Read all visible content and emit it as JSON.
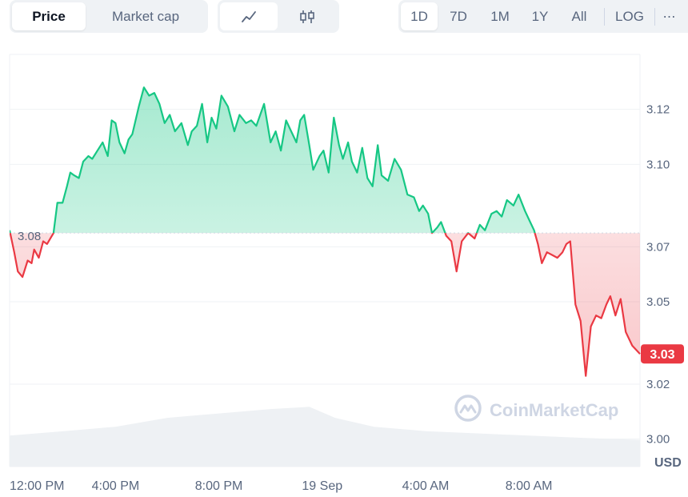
{
  "toolbar": {
    "metric_tabs": [
      {
        "label": "Price",
        "active": true
      },
      {
        "label": "Market cap",
        "active": false
      }
    ],
    "chart_type_icons": [
      "line-chart-icon",
      "candlestick-icon"
    ],
    "ranges": [
      "1D",
      "7D",
      "1M",
      "1Y",
      "All"
    ],
    "active_range": "1D",
    "log_label": "LOG",
    "more_icon": "more-icon"
  },
  "watermark": "CoinMarketCap",
  "colors": {
    "up": "#16c784",
    "down": "#ea3943",
    "text": "#58667e",
    "grid": "#eff2f5"
  },
  "chart_data": {
    "type": "line",
    "x_tick_labels": [
      "12:00 PM",
      "4:00 PM",
      "8:00 PM",
      "19 Sep",
      "4:00 AM",
      "8:00 AM"
    ],
    "x_tick_hours": [
      0,
      4,
      8,
      12,
      16,
      20
    ],
    "y_ticks": [
      3.0,
      3.02,
      3.05,
      3.07,
      3.1,
      3.12
    ],
    "y_tick_labels": [
      "3.00",
      "3.02",
      "3.05",
      "3.07",
      "3.10",
      "3.12"
    ],
    "ylim": [
      2.99,
      3.14
    ],
    "xlim_hours": [
      -0.1,
      24.3
    ],
    "ylabel": "USD",
    "baseline_value": 3.075,
    "baseline_label": "3.08",
    "current_label": "3.03",
    "price_series": {
      "hours": [
        -0.1,
        0.08,
        0.22,
        0.4,
        0.6,
        0.75,
        0.85,
        1.03,
        1.2,
        1.35,
        1.6,
        1.75,
        1.95,
        2.12,
        2.25,
        2.4,
        2.58,
        2.75,
        2.95,
        3.1,
        3.3,
        3.5,
        3.7,
        3.85,
        4.0,
        4.15,
        4.35,
        4.5,
        4.65,
        4.9,
        5.1,
        5.3,
        5.5,
        5.7,
        5.9,
        6.1,
        6.3,
        6.55,
        6.8,
        6.95,
        7.15,
        7.35,
        7.55,
        7.72,
        7.9,
        8.1,
        8.35,
        8.6,
        8.8,
        9.05,
        9.25,
        9.45,
        9.75,
        10.0,
        10.2,
        10.4,
        10.6,
        10.8,
        11.0,
        11.15,
        11.3,
        11.5,
        11.65,
        11.9,
        12.05,
        12.25,
        12.45,
        12.65,
        12.8,
        13.0,
        13.15,
        13.35,
        13.55,
        13.75,
        13.95,
        14.15,
        14.3,
        14.55,
        14.8,
        15.05,
        15.3,
        15.55,
        15.75,
        15.9,
        16.1,
        16.25,
        16.45,
        16.6,
        16.8,
        17.0,
        17.2,
        17.4,
        17.65,
        17.9,
        18.1,
        18.3,
        18.55,
        18.75,
        18.95,
        19.15,
        19.4,
        19.6,
        19.85,
        20.05,
        20.2,
        20.35,
        20.5,
        20.7,
        20.9,
        21.1,
        21.3,
        21.45,
        21.6,
        21.8,
        22.0,
        22.2,
        22.4,
        22.6,
        22.8,
        23.0,
        23.15,
        23.35,
        23.55,
        23.75,
        24.0,
        24.3
      ],
      "values": [
        3.076,
        3.068,
        3.061,
        3.059,
        3.065,
        3.064,
        3.069,
        3.066,
        3.072,
        3.071,
        3.075,
        3.086,
        3.086,
        3.092,
        3.097,
        3.096,
        3.095,
        3.101,
        3.103,
        3.102,
        3.105,
        3.108,
        3.103,
        3.116,
        3.115,
        3.108,
        3.104,
        3.109,
        3.111,
        3.121,
        3.128,
        3.125,
        3.126,
        3.122,
        3.115,
        3.118,
        3.112,
        3.115,
        3.107,
        3.112,
        3.114,
        3.122,
        3.108,
        3.117,
        3.113,
        3.125,
        3.121,
        3.112,
        3.118,
        3.115,
        3.116,
        3.114,
        3.122,
        3.108,
        3.112,
        3.105,
        3.116,
        3.112,
        3.108,
        3.116,
        3.118,
        3.107,
        3.098,
        3.103,
        3.105,
        3.097,
        3.117,
        3.107,
        3.102,
        3.108,
        3.101,
        3.097,
        3.106,
        3.095,
        3.092,
        3.107,
        3.096,
        3.094,
        3.102,
        3.098,
        3.089,
        3.088,
        3.083,
        3.085,
        3.082,
        3.075,
        3.077,
        3.079,
        3.074,
        3.072,
        3.061,
        3.072,
        3.075,
        3.073,
        3.078,
        3.076,
        3.082,
        3.083,
        3.081,
        3.087,
        3.085,
        3.089,
        3.083,
        3.079,
        3.076,
        3.071,
        3.064,
        3.068,
        3.067,
        3.066,
        3.068,
        3.071,
        3.072,
        3.049,
        3.043,
        3.023,
        3.041,
        3.045,
        3.044,
        3.049,
        3.052,
        3.045,
        3.051,
        3.039,
        3.034,
        3.031
      ]
    },
    "volume_series": {
      "hours": [
        -0.1,
        2,
        4,
        6,
        8,
        10,
        11.5,
        12.5,
        14,
        16,
        18,
        20,
        22,
        24.3
      ],
      "values": [
        0.14,
        0.16,
        0.18,
        0.22,
        0.24,
        0.26,
        0.27,
        0.22,
        0.18,
        0.16,
        0.15,
        0.14,
        0.13,
        0.12
      ]
    }
  }
}
